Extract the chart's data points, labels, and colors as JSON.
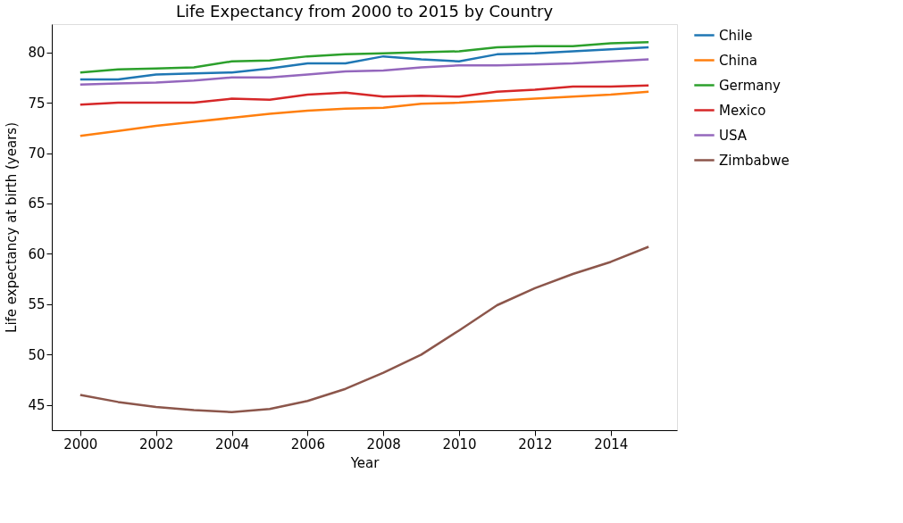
{
  "chart_data": {
    "type": "line",
    "title": "Life Expectancy from 2000 to 2015 by Country",
    "xlabel": "Year",
    "ylabel": "Life expectancy at birth (years)",
    "x": [
      2000,
      2001,
      2002,
      2003,
      2004,
      2005,
      2006,
      2007,
      2008,
      2009,
      2010,
      2011,
      2012,
      2013,
      2014,
      2015
    ],
    "series": [
      {
        "name": "Chile",
        "color": "#1f77b4",
        "values": [
          77.3,
          77.3,
          77.8,
          77.9,
          78.0,
          78.4,
          78.9,
          78.9,
          79.6,
          79.3,
          79.1,
          79.8,
          79.9,
          80.1,
          80.3,
          80.5
        ]
      },
      {
        "name": "China",
        "color": "#ff7f0e",
        "values": [
          71.7,
          72.2,
          72.7,
          73.1,
          73.5,
          73.9,
          74.2,
          74.4,
          74.5,
          74.9,
          75.0,
          75.2,
          75.4,
          75.6,
          75.8,
          76.1
        ]
      },
      {
        "name": "Germany",
        "color": "#2ca02c",
        "values": [
          78.0,
          78.3,
          78.4,
          78.5,
          79.1,
          79.2,
          79.6,
          79.8,
          79.9,
          80.0,
          80.1,
          80.5,
          80.6,
          80.6,
          80.9,
          81.0
        ]
      },
      {
        "name": "Mexico",
        "color": "#d62728",
        "values": [
          74.8,
          75.0,
          75.0,
          75.0,
          75.4,
          75.3,
          75.8,
          76.0,
          75.6,
          75.7,
          75.6,
          76.1,
          76.3,
          76.6,
          76.6,
          76.7
        ]
      },
      {
        "name": "USA",
        "color": "#9467bd",
        "values": [
          76.8,
          76.9,
          77.0,
          77.2,
          77.5,
          77.5,
          77.8,
          78.1,
          78.2,
          78.5,
          78.7,
          78.7,
          78.8,
          78.9,
          79.1,
          79.3
        ]
      },
      {
        "name": "Zimbabwe",
        "color": "#8c564b",
        "values": [
          46.0,
          45.3,
          44.8,
          44.5,
          44.3,
          44.6,
          45.4,
          46.6,
          48.2,
          50.0,
          52.4,
          54.9,
          56.6,
          58.0,
          59.2,
          60.7
        ]
      }
    ],
    "xlim": [
      1999.25,
      2015.75
    ],
    "xticks": [
      2000,
      2002,
      2004,
      2006,
      2008,
      2010,
      2012,
      2014
    ],
    "ylim": [
      42.5,
      82.8
    ],
    "yticks": [
      45,
      50,
      55,
      60,
      65,
      70,
      75,
      80
    ],
    "grid": false,
    "legend": "right",
    "marker": "none",
    "line_style": "solid"
  }
}
